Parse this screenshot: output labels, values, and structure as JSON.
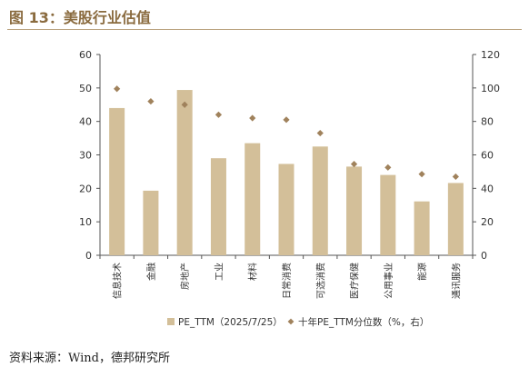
{
  "figure": {
    "title": "图 13：美股行业估值",
    "source": "资料来源：Wind，德邦研究所"
  },
  "colors": {
    "bar": "#d3bf99",
    "marker": "#a0825c",
    "axis": "#555555",
    "text": "#333333",
    "title": "#8a6b3f"
  },
  "chart_data": {
    "type": "bar",
    "title": "",
    "xlabel": "",
    "ylabel": "",
    "categories": [
      "信息技术",
      "金融",
      "房地产",
      "工业",
      "材料",
      "日常消费",
      "可选消费",
      "医疗保健",
      "公用事业",
      "能源",
      "通讯服务"
    ],
    "ylim": [
      0,
      60
    ],
    "y_ticks": [
      0,
      10,
      20,
      30,
      40,
      50,
      60
    ],
    "y2lim": [
      0,
      120
    ],
    "y2_ticks": [
      0,
      20,
      40,
      60,
      80,
      100,
      120
    ],
    "grid": false,
    "legend_position": "bottom",
    "series": [
      {
        "name": "PE_TTM（2025/7/25）",
        "type": "bar",
        "axis": "left",
        "values": [
          44,
          19.3,
          49.4,
          29,
          33.5,
          27.3,
          32.5,
          26.5,
          24,
          16.1,
          21.6
        ]
      },
      {
        "name": "十年PE_TTM分位数（%，右）",
        "type": "scatter",
        "marker": "diamond",
        "axis": "right",
        "values": [
          99.5,
          92,
          90,
          84,
          82,
          81,
          73,
          54.5,
          52.5,
          48.5,
          47
        ]
      }
    ]
  }
}
